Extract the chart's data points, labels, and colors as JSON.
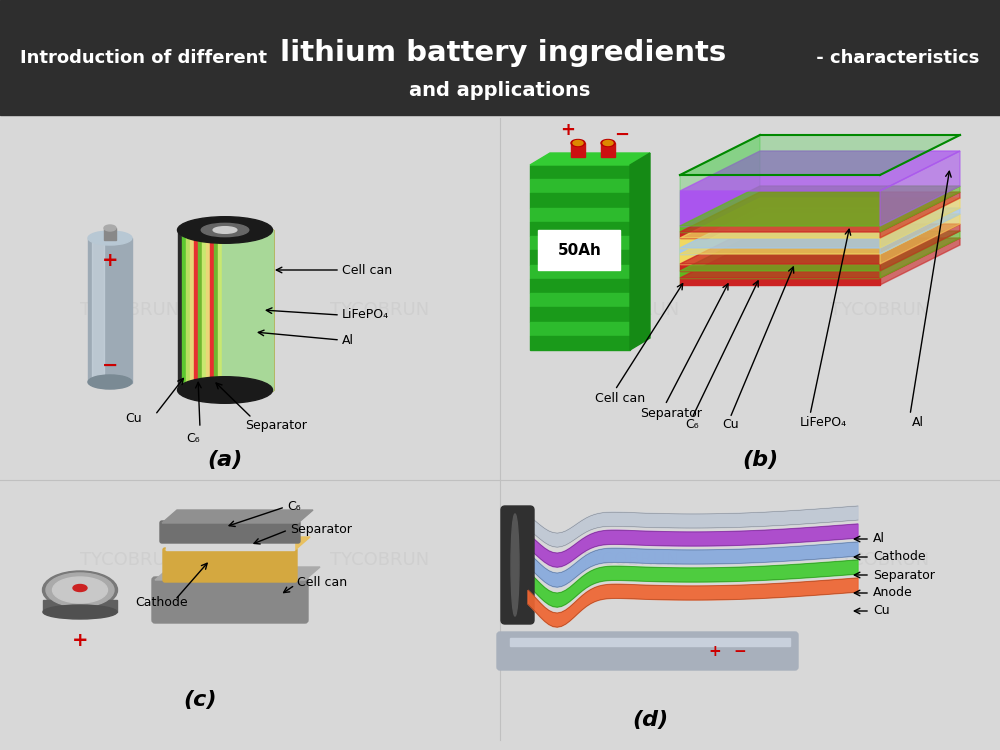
{
  "title_normal": "Introduction of different ",
  "title_large": "lithium battery ingredients",
  "title_suffix": " - characteristics",
  "title_line2": "and applications",
  "bg_color": "#d8d8d8",
  "header_color": "#2e2e2e",
  "header_text_color": "#ffffff",
  "watermark": "TYCOBRUN",
  "wm_color": "#bbbbbb",
  "wm_alpha": 0.3,
  "panel_a_label": "(a)",
  "panel_b_label": "(b)",
  "panel_c_label": "(c)",
  "panel_d_label": "(d)"
}
